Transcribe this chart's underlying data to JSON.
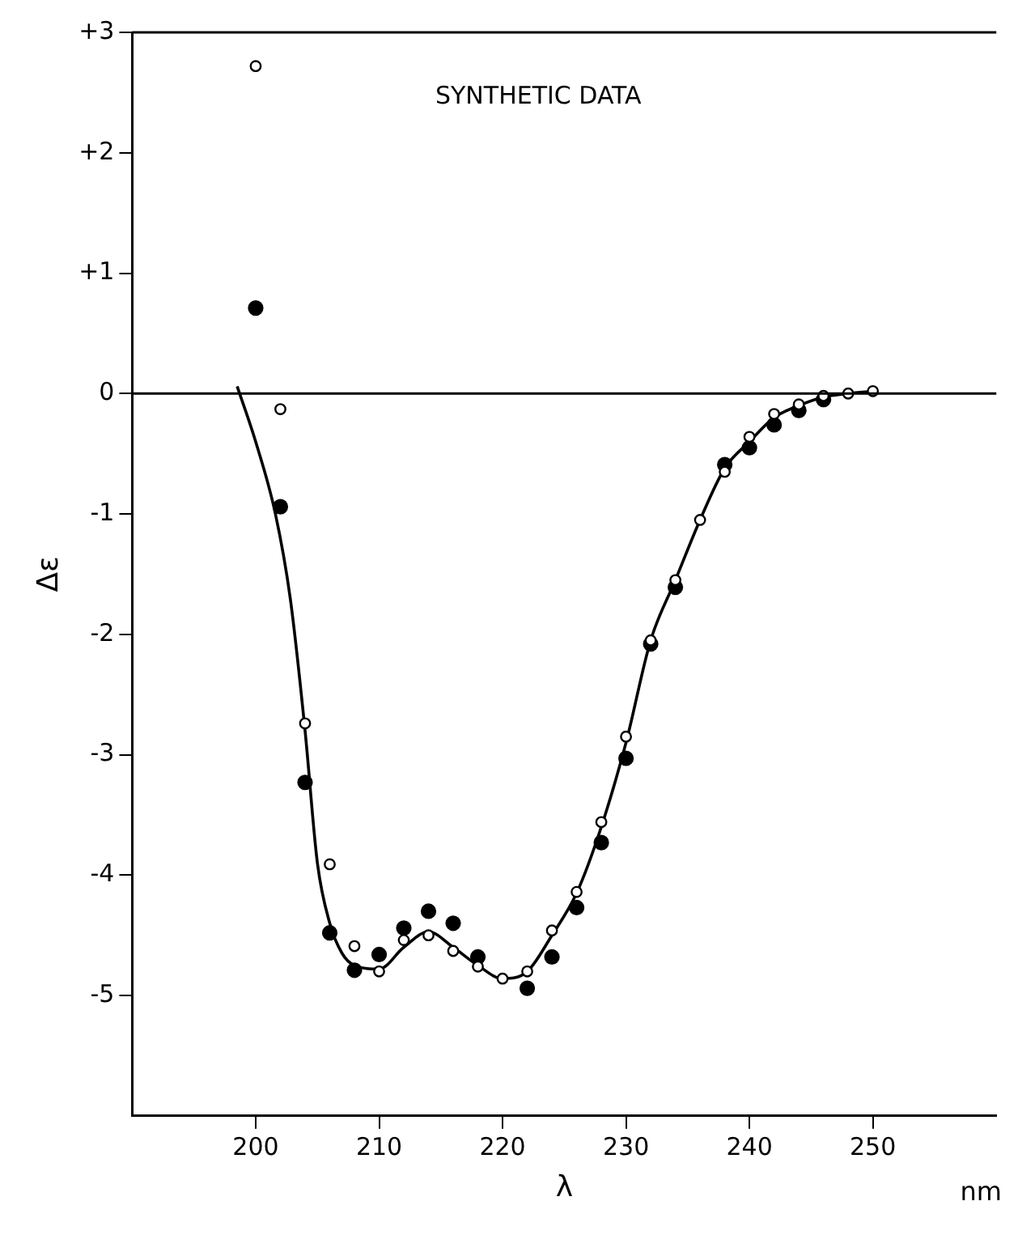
{
  "chart_data": {
    "type": "scatter",
    "xlabel": "λ",
    "ylabel": "Δε",
    "annotations": [
      "SYNTHETIC DATA",
      "nm"
    ],
    "xlim": [
      190,
      260
    ],
    "xticks": [
      200,
      210,
      220,
      230,
      240,
      250
    ],
    "ylim": [
      -6,
      3
    ],
    "yticks": [
      {
        "value": 3,
        "label": "+3"
      },
      {
        "value": 2,
        "label": "+2"
      },
      {
        "value": 1,
        "label": "+1"
      },
      0,
      -1,
      -2,
      -3,
      -4,
      -5
    ],
    "grid": false,
    "legend": false,
    "ref_lines": [
      {
        "axis": "y",
        "value": 0,
        "color": "#000000"
      }
    ],
    "series": [
      {
        "type": "scatter",
        "color": "#000000",
        "marker": "circle",
        "x": [
          200,
          202,
          204,
          206,
          208,
          210,
          212,
          214,
          216,
          218,
          220,
          222,
          224,
          226,
          228,
          230,
          232,
          234,
          236,
          238,
          240,
          242,
          244,
          246,
          248,
          250
        ],
        "values": [
          2.72,
          -0.13,
          -2.74,
          -3.91,
          -4.59,
          -4.8,
          -4.54,
          -4.5,
          -4.63,
          -4.76,
          -4.86,
          -4.8,
          -4.46,
          -4.14,
          -3.56,
          -2.85,
          -2.05,
          -1.55,
          -1.05,
          -0.65,
          -0.36,
          -0.17,
          -0.09,
          -0.02,
          0.0,
          0.02
        ]
      },
      {
        "type": "scatter",
        "color": "#000000",
        "marker": "circle",
        "x": [
          200,
          202,
          204,
          206,
          208,
          210,
          212,
          214,
          216,
          218,
          220,
          222,
          224,
          226,
          228,
          230,
          232,
          234,
          236,
          238,
          240,
          242,
          244,
          246
        ],
        "values": [
          0.71,
          -0.94,
          -3.23,
          -4.48,
          -4.79,
          -4.66,
          -4.44,
          -4.3,
          -4.4,
          -4.68,
          null,
          -4.94,
          -4.68,
          -4.27,
          -3.73,
          -3.03,
          -2.08,
          -1.61,
          null,
          -0.59,
          -0.45,
          -0.26,
          -0.14,
          -0.05
        ]
      },
      {
        "type": "line",
        "color": "#000000",
        "marker": "none",
        "line_style": "solid",
        "x": [
          198.5,
          200,
          201.6,
          202.8,
          204,
          205,
          206,
          207,
          208,
          210,
          212,
          214,
          216,
          218,
          220,
          222,
          224,
          226,
          228,
          230,
          232,
          234,
          236,
          238,
          240,
          242,
          244,
          246,
          248,
          250
        ],
        "values": [
          0.06,
          -0.4,
          -1.0,
          -1.7,
          -2.8,
          -3.9,
          -4.4,
          -4.65,
          -4.75,
          -4.78,
          -4.6,
          -4.47,
          -4.6,
          -4.75,
          -4.86,
          -4.8,
          -4.5,
          -4.15,
          -3.6,
          -2.9,
          -2.05,
          -1.55,
          -1.05,
          -0.62,
          -0.4,
          -0.2,
          -0.1,
          -0.03,
          0.0,
          0.02
        ]
      }
    ]
  }
}
